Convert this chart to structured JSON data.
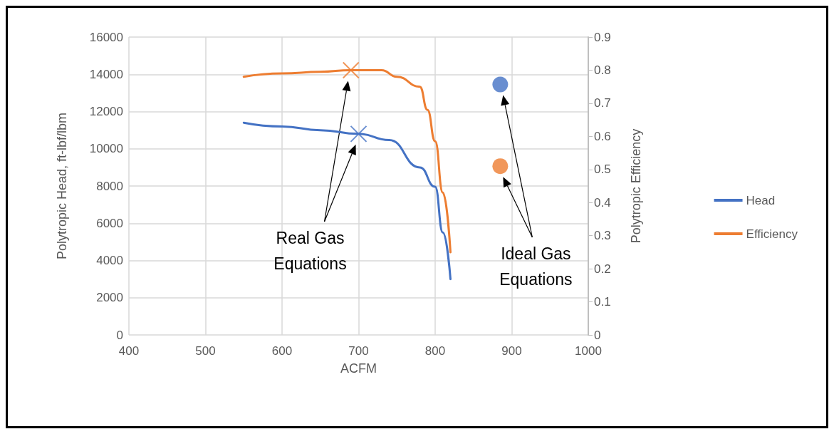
{
  "chart_data": {
    "type": "line",
    "xlabel": "ACFM",
    "ylabel": "Polytropic Head, ft-lbf/lbm",
    "y2label": "Polytropic Efficiency",
    "xlim": [
      400,
      1000
    ],
    "xticks": [
      400,
      500,
      600,
      700,
      800,
      900,
      {
        "value": 1000,
        "label": "1000"
      }
    ],
    "ylim": [
      0,
      16000
    ],
    "yticks": [
      0,
      2000,
      4000,
      6000,
      8000,
      10000,
      12000,
      14000,
      16000
    ],
    "y2lim": [
      0,
      0.9
    ],
    "y2ticks": [
      0,
      0.1,
      0.2,
      0.3,
      0.4,
      0.5,
      0.6,
      0.7,
      0.8,
      0.9
    ],
    "grid": true,
    "legend": "right",
    "marker": "none",
    "line_style": "solid",
    "series": [
      {
        "name": "Head",
        "color": "#4472c4",
        "x": [
          550,
          600,
          650,
          700,
          740,
          780,
          800,
          810,
          820
        ],
        "values": [
          11400,
          11200,
          11000,
          10800,
          10470,
          9000,
          7960,
          5500,
          3000
        ]
      },
      {
        "name": "Efficiency",
        "color": "#ed7d31",
        "axis": "y2",
        "x": [
          550,
          600,
          650,
          690,
          730,
          750,
          780,
          790,
          800,
          810,
          820
        ],
        "values": [
          0.78,
          0.79,
          0.795,
          0.8,
          0.8,
          0.78,
          0.75,
          0.68,
          0.585,
          0.43,
          0.25
        ]
      },
      {
        "type": "scatter",
        "marker": "cross",
        "color": "#4472c4",
        "x": [
          700
        ],
        "values": [
          10800
        ]
      },
      {
        "type": "scatter",
        "marker": "cross",
        "color": "#ed7d31",
        "axis": "y2",
        "x": [
          690
        ],
        "values": [
          0.8
        ]
      },
      {
        "type": "scatter",
        "marker": "circle",
        "color": "#4472c4",
        "x": [
          885
        ],
        "values": [
          13450
        ]
      },
      {
        "type": "scatter",
        "marker": "circle",
        "color": "#ed7d31",
        "axis": "y2",
        "x": [
          885
        ],
        "values": [
          0.51
        ]
      }
    ],
    "annotations": [
      "Real Gas Equations",
      "Ideal Gas Equations"
    ]
  }
}
